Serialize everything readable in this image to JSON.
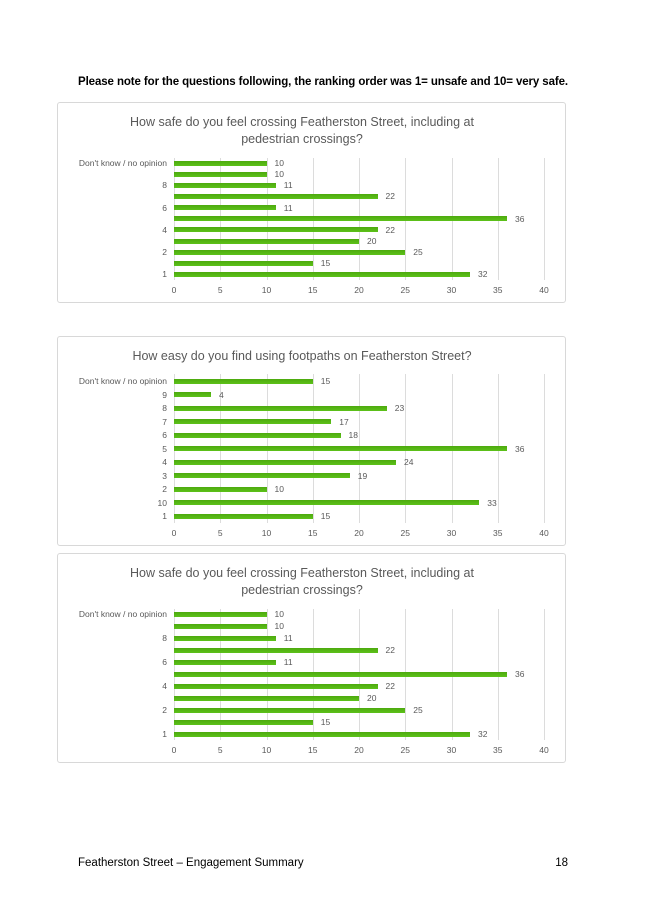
{
  "page": {
    "note": "Please note for the questions following, the ranking order was 1= unsafe and 10= very safe.",
    "footer": {
      "left": "Featherston Street – Engagement Summary",
      "page_number": "18"
    }
  },
  "colors": {
    "bar": "#56B511",
    "title_text": "#595959",
    "axis_text": "#595959",
    "gridline": "#DCDCDC",
    "chart_border": "#D8D8D8"
  },
  "chart_data": [
    {
      "type": "bar",
      "orientation": "horizontal",
      "title": "How safe do you feel crossing Featherston Street, including at pedestrian crossings?",
      "categories": [
        "Don't know / no opinion",
        "",
        "8",
        "",
        "6",
        "",
        "4",
        "",
        "2",
        "",
        "1"
      ],
      "values": [
        10,
        10,
        11,
        22,
        11,
        36,
        22,
        20,
        25,
        15,
        32
      ],
      "data_labels": [
        10,
        10,
        11,
        22,
        11,
        36,
        22,
        20,
        25,
        15,
        32
      ],
      "xlabel": "",
      "ylabel": "",
      "xlim": [
        0,
        40
      ],
      "xticks": [
        0,
        5,
        10,
        15,
        20,
        25,
        30,
        35,
        40
      ],
      "grid": "vertical",
      "legend": "none"
    },
    {
      "type": "bar",
      "orientation": "horizontal",
      "title": "How easy do you find using footpaths on Featherston Street?",
      "categories": [
        "Don't know / no opinion",
        "9",
        "8",
        "7",
        "6",
        "5",
        "4",
        "3",
        "2",
        "10",
        "1"
      ],
      "values": [
        15,
        4,
        23,
        17,
        18,
        36,
        24,
        19,
        10,
        33,
        15
      ],
      "data_labels": [
        15,
        4,
        23,
        17,
        18,
        36,
        24,
        19,
        10,
        33,
        15
      ],
      "xlabel": "",
      "ylabel": "",
      "xlim": [
        0,
        40
      ],
      "xticks": [
        0,
        5,
        10,
        15,
        20,
        25,
        30,
        35,
        40
      ],
      "grid": "vertical",
      "legend": "none"
    },
    {
      "type": "bar",
      "orientation": "horizontal",
      "title": "How safe do you feel crossing Featherston Street, including at pedestrian crossings?",
      "categories": [
        "Don't know / no opinion",
        "",
        "8",
        "",
        "6",
        "",
        "4",
        "",
        "2",
        "",
        "1"
      ],
      "values": [
        10,
        10,
        11,
        22,
        11,
        36,
        22,
        20,
        25,
        15,
        32
      ],
      "data_labels": [
        10,
        10,
        11,
        22,
        11,
        36,
        22,
        20,
        25,
        15,
        32
      ],
      "xlabel": "",
      "ylabel": "",
      "xlim": [
        0,
        40
      ],
      "xticks": [
        0,
        5,
        10,
        15,
        20,
        25,
        30,
        35,
        40
      ],
      "grid": "vertical",
      "legend": "none"
    }
  ]
}
